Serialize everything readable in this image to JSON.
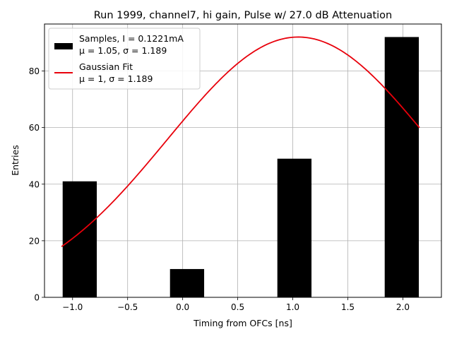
{
  "chart_data": {
    "type": "bar",
    "title": "Run 1999, channel7, hi gain, Pulse w/ 27.0 dB Attenuation",
    "xlabel": "Timing from OFCs [ns]",
    "ylabel": "Entries",
    "xlim": [
      -1.255,
      2.35
    ],
    "ylim": [
      0,
      96.6
    ],
    "x_ticks": [
      -1.0,
      -0.5,
      0.0,
      0.5,
      1.0,
      1.5,
      2.0
    ],
    "x_tick_labels": [
      "−1.0",
      "−0.5",
      "0.0",
      "0.5",
      "1.0",
      "1.5",
      "2.0"
    ],
    "y_ticks": [
      0,
      20,
      40,
      60,
      80
    ],
    "y_tick_labels": [
      "0",
      "20",
      "40",
      "60",
      "80"
    ],
    "grid": true,
    "legend_position": "top-left",
    "bars": {
      "legend_line1": "Samples, I = 0.1221mA",
      "legend_line2": "μ = 1.05, σ = 1.189",
      "color": "#000000",
      "bar_width": 0.31,
      "centers": [
        -0.935,
        0.04,
        1.015,
        1.99
      ],
      "values": [
        41,
        10,
        49,
        92
      ]
    },
    "fit": {
      "legend_line1": "Gaussian Fit",
      "legend_line2": "μ = 1, σ = 1.189",
      "color": "#e8000b",
      "amplitude": 92,
      "mu": 1.05,
      "sigma": 1.189,
      "x_range": [
        -1.1,
        2.15
      ]
    }
  }
}
